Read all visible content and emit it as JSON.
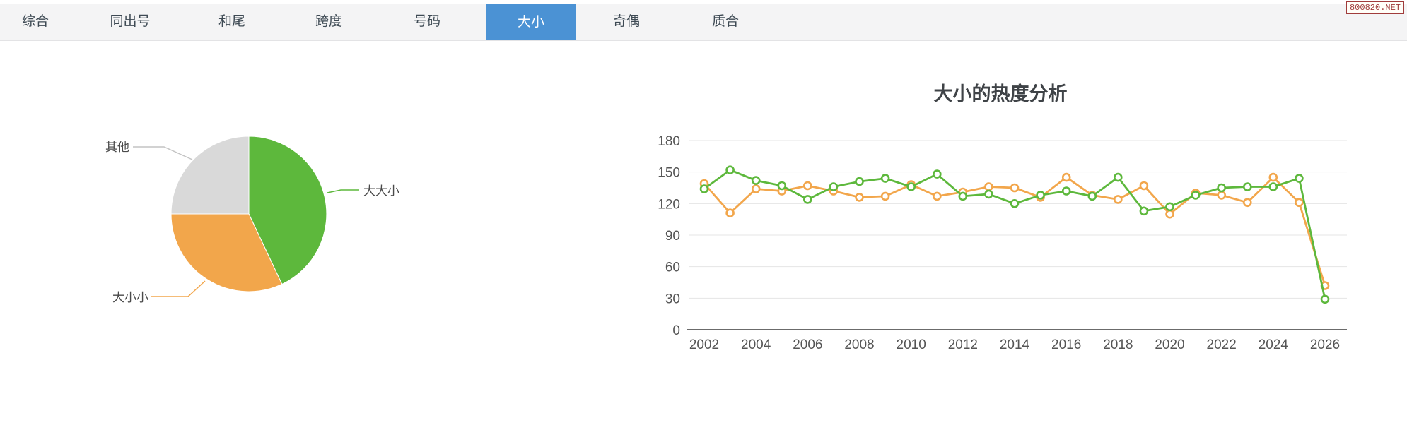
{
  "badge": {
    "text": "800820.NET"
  },
  "tabs": {
    "items": [
      {
        "label": "综合",
        "active": false
      },
      {
        "label": "同出号",
        "active": false
      },
      {
        "label": "和尾",
        "active": false
      },
      {
        "label": "跨度",
        "active": false
      },
      {
        "label": "号码",
        "active": false
      },
      {
        "label": "大小",
        "active": true
      },
      {
        "label": "奇偶",
        "active": false
      },
      {
        "label": "质合",
        "active": false
      }
    ]
  },
  "colors": {
    "accent_blue": "#4b92d4",
    "series_green": "#5db83c",
    "series_orange": "#f2a64b",
    "pie_gray": "#d9d9d9",
    "grid": "#e4e4e4",
    "axis": "#6b6b6b",
    "tick_text": "#555555",
    "title_text": "#3f4347",
    "label_text": "#4a4a4a",
    "leader_gray": "#c4c4c4"
  },
  "chart_data": [
    {
      "type": "pie",
      "title": "",
      "labels": [
        "大大小",
        "大小小",
        "其他"
      ],
      "values": [
        43,
        32,
        25
      ],
      "unit": "percent-of-circle",
      "colors": [
        "#5db83c",
        "#f2a64b",
        "#d9d9d9"
      ],
      "label_style": "outside-with-leader-lines",
      "start": "top-clockwise"
    },
    {
      "type": "line",
      "title": "大小的热度分析",
      "x": [
        2002,
        2003,
        2004,
        2005,
        2006,
        2007,
        2008,
        2009,
        2010,
        2011,
        2012,
        2013,
        2014,
        2015,
        2016,
        2017,
        2018,
        2019,
        2020,
        2021,
        2022,
        2023,
        2024,
        2025,
        2026
      ],
      "x_tick_labels": [
        "2002",
        "2004",
        "2006",
        "2008",
        "2010",
        "2012",
        "2014",
        "2016",
        "2018",
        "2020",
        "2022",
        "2024",
        "2026"
      ],
      "y_ticks": [
        0,
        30,
        60,
        90,
        120,
        150,
        180
      ],
      "ylim": [
        0,
        180
      ],
      "grid": true,
      "legend": "none",
      "marker": "open-circle",
      "series": [
        {
          "name": "orange",
          "color": "#f2a64b",
          "values": [
            139,
            111,
            134,
            132,
            137,
            132,
            126,
            127,
            138,
            127,
            131,
            136,
            135,
            126,
            145,
            128,
            124,
            137,
            110,
            130,
            128,
            121,
            145,
            121,
            42
          ]
        },
        {
          "name": "green",
          "color": "#5db83c",
          "values": [
            134,
            152,
            142,
            137,
            124,
            136,
            141,
            144,
            136,
            148,
            127,
            129,
            120,
            128,
            132,
            127,
            145,
            113,
            117,
            128,
            135,
            136,
            136,
            144,
            29
          ]
        }
      ]
    }
  ]
}
